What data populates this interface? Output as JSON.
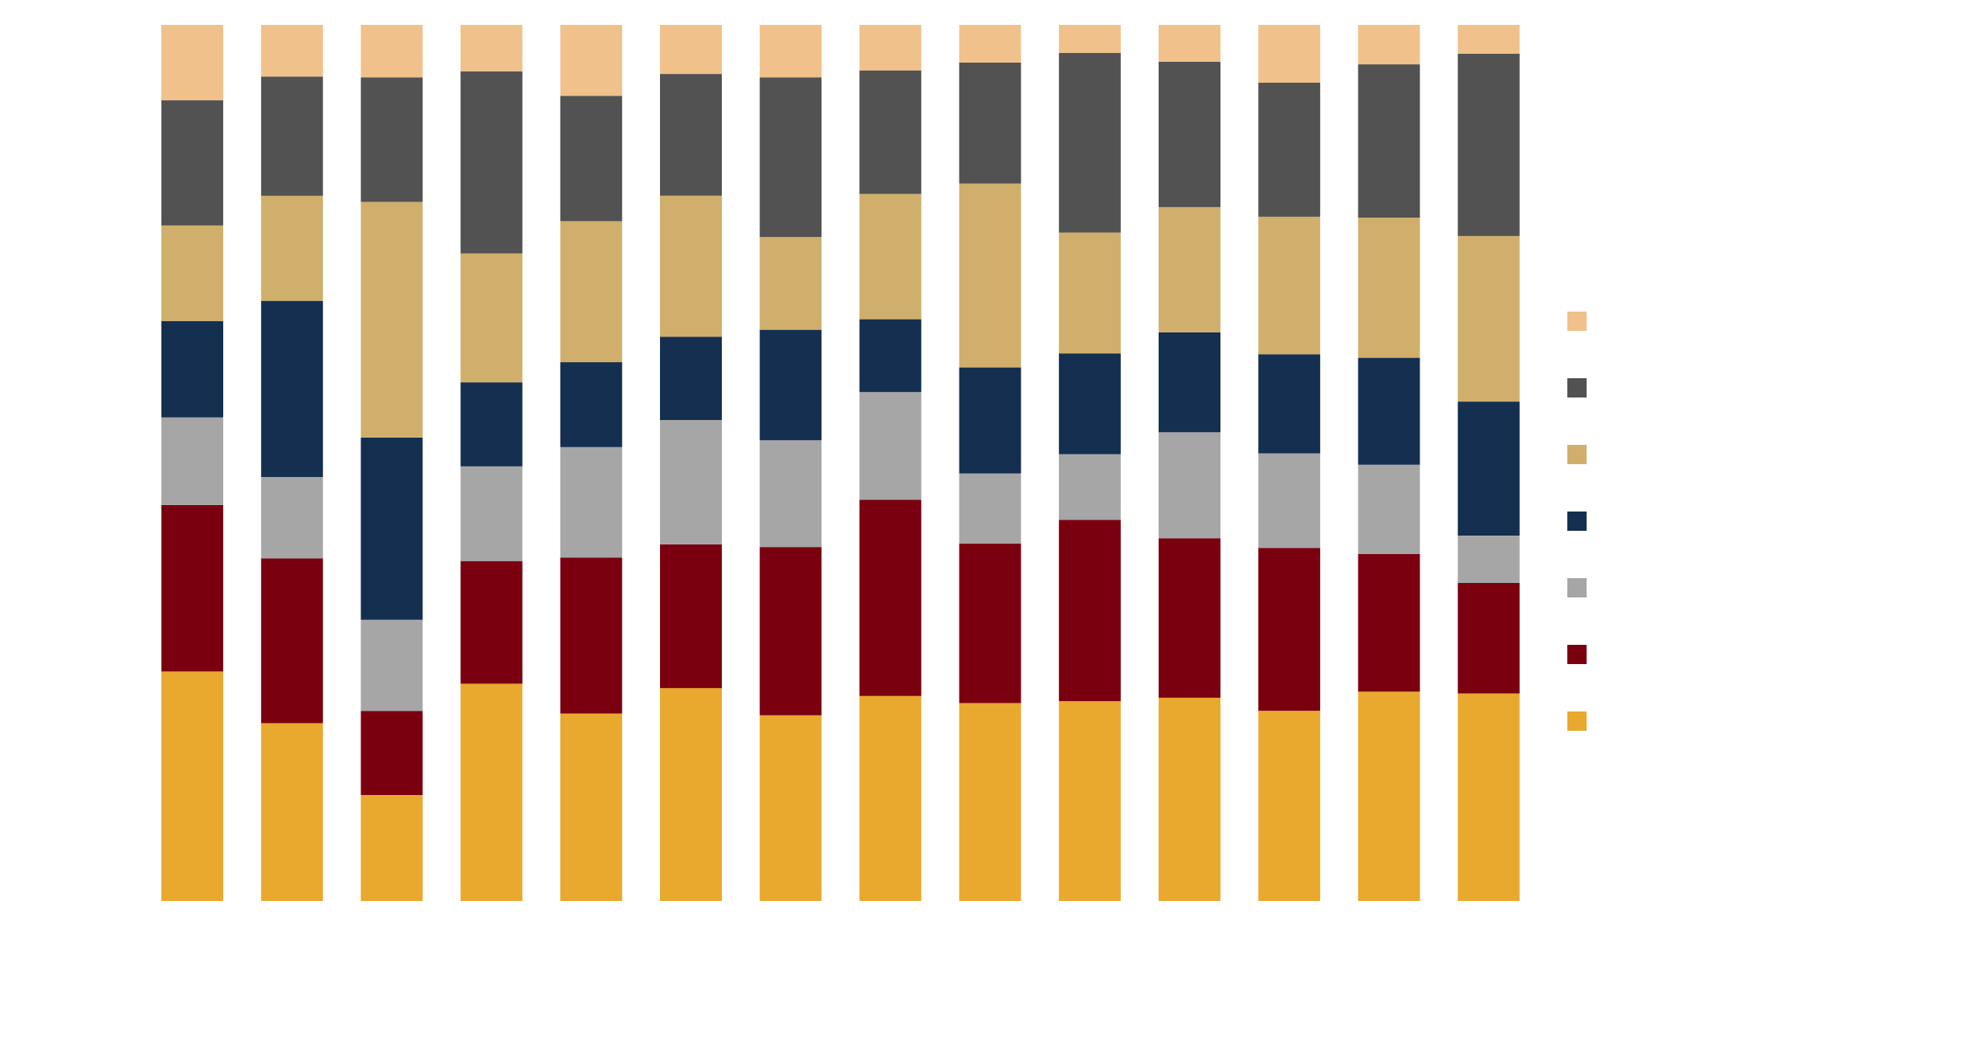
{
  "chart_data": {
    "type": "bar",
    "stacked": true,
    "normalized": true,
    "title": "",
    "xlabel": "",
    "ylabel": "",
    "ylim": [
      0,
      100
    ],
    "grid": false,
    "legend_position": "right",
    "categories": [
      "",
      "",
      "",
      "",
      "",
      "",
      "",
      "",
      "",
      "",
      "",
      "",
      "",
      ""
    ],
    "series": [
      {
        "color": "#e9a82e",
        "values": [
          26.2,
          20.3,
          12.1,
          24.8,
          21.4,
          24.3,
          21.2,
          23.4,
          22.6,
          22.8,
          23.2,
          21.7,
          23.9,
          23.7
        ]
      },
      {
        "color": "#7a0010",
        "values": [
          19.0,
          18.8,
          9.6,
          14.0,
          17.8,
          16.4,
          19.2,
          22.4,
          18.2,
          20.7,
          18.2,
          18.6,
          15.7,
          12.6
        ]
      },
      {
        "color": "#a6a6a6",
        "values": [
          10.0,
          9.3,
          10.4,
          10.8,
          12.6,
          14.2,
          12.2,
          12.3,
          8.0,
          7.5,
          12.1,
          10.8,
          10.2,
          5.4
        ]
      },
      {
        "color": "#152f50",
        "values": [
          11.0,
          20.1,
          20.8,
          9.6,
          9.7,
          9.5,
          12.6,
          8.3,
          12.1,
          11.5,
          11.4,
          11.3,
          12.2,
          15.3
        ]
      },
      {
        "color": "#cfaf6b",
        "values": [
          10.9,
          12.0,
          26.9,
          14.7,
          16.1,
          16.1,
          10.6,
          14.3,
          21.0,
          13.8,
          14.3,
          15.7,
          16.0,
          18.9
        ]
      },
      {
        "color": "#525252",
        "values": [
          14.3,
          13.6,
          14.2,
          20.8,
          14.3,
          13.9,
          18.2,
          14.1,
          13.8,
          20.5,
          16.6,
          15.3,
          17.5,
          20.8
        ]
      },
      {
        "color": "#f0c18b",
        "values": [
          8.6,
          5.9,
          6.0,
          5.3,
          8.1,
          5.6,
          6.0,
          5.2,
          4.3,
          3.2,
          4.2,
          6.6,
          4.5,
          3.3
        ]
      }
    ]
  }
}
